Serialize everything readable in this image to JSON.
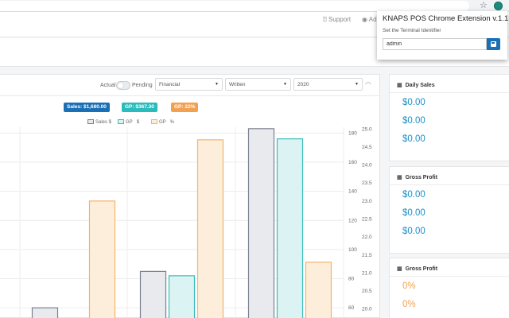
{
  "header": {
    "support_label": "Support",
    "admin_label": "Ad"
  },
  "popup": {
    "title": "KNAPS POS Chrome Extension v.1.1",
    "subtitle": "Set the Terminal Identifier",
    "input_value": "admin"
  },
  "filters": {
    "toggle_left": "Actual",
    "toggle_right": "Pending",
    "select_type": "Financial",
    "select_status": "Written",
    "select_year": "2020"
  },
  "badges": {
    "sales": "Sales: $1,680.00",
    "gp_dollar": "GP: $367.30",
    "gp_pct": "GP: 22%"
  },
  "colors": {
    "sales_badge": "#1b6fb5",
    "gp_badge": "#2bbbbb",
    "pct_badge": "#f2a152",
    "sales_fill": "#e9eaee",
    "sales_stroke": "#7b8091",
    "gp_fill": "#dcf3f3",
    "gp_stroke": "#3bbcbc",
    "pct_fill": "#fdeedb",
    "pct_stroke": "#f3b469"
  },
  "chart_data": {
    "type": "bar",
    "series": [
      {
        "name": "Sales $",
        "values": [
          60,
          85,
          183
        ]
      },
      {
        "name": "GP $",
        "values": [
          null,
          82,
          176
        ]
      },
      {
        "name": "GP %",
        "values": [
          23.0,
          24.7,
          21.3
        ]
      }
    ],
    "legend": [
      "Sales $",
      "GP",
      "$",
      "GP",
      "%"
    ],
    "y_left": {
      "ticks": [
        60,
        80,
        100,
        120,
        140,
        160,
        180
      ],
      "range": [
        53,
        184
      ]
    },
    "y_right": {
      "ticks": [
        "20.0",
        "20.5",
        "21.0",
        "21.5",
        "22.0",
        "22.5",
        "23.0",
        "23.5",
        "24.0",
        "24.5",
        "25.0"
      ],
      "range": [
        19.75,
        25.05
      ]
    },
    "grid": true,
    "legend_position": "top"
  },
  "cards": [
    {
      "title": "Daily Sales",
      "values": [
        "$0.00",
        "$0.00",
        "$0.00"
      ],
      "kind": "money"
    },
    {
      "title": "Gross Profit",
      "values": [
        "$0.00",
        "$0.00",
        "$0.00"
      ],
      "kind": "money"
    },
    {
      "title": "Gross Profit",
      "values": [
        "0%",
        "0%"
      ],
      "kind": "pct"
    }
  ]
}
